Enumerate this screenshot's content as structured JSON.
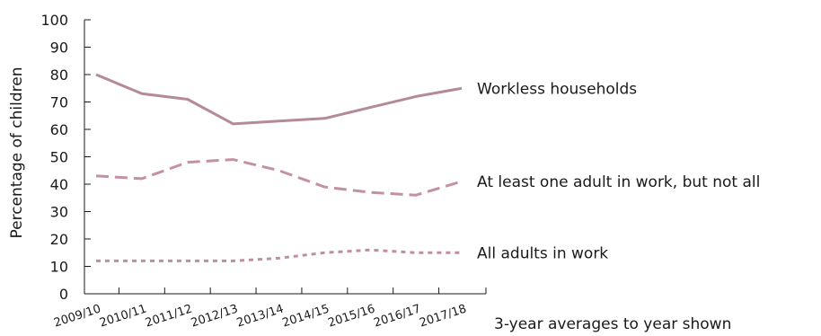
{
  "chart_data": {
    "type": "line",
    "categories": [
      "2009/10",
      "2010/11",
      "2011/12",
      "2012/13",
      "2013/14",
      "2014/15",
      "2015/16",
      "2016/17",
      "2017/18"
    ],
    "ylabel": "Percentage of children",
    "xlabel": "3-year averages to year shown",
    "ylim": [
      0,
      100
    ],
    "yticks": [
      0,
      10,
      20,
      30,
      40,
      50,
      60,
      70,
      80,
      90,
      100
    ],
    "grid": false,
    "series": [
      {
        "name": "Workless households",
        "style": "solid",
        "color": "#b58a98",
        "values": [
          80,
          73,
          71,
          62,
          63,
          64,
          68,
          72,
          75
        ]
      },
      {
        "name": "At least one adult in work, but not all",
        "style": "dashed",
        "color": "#c4919f",
        "values": [
          43,
          42,
          48,
          49,
          45,
          39,
          37,
          36,
          41
        ]
      },
      {
        "name": "All adults in work",
        "style": "dotted",
        "color": "#c08f9d",
        "values": [
          12,
          12,
          12,
          12,
          13,
          15,
          16,
          15,
          15
        ]
      }
    ]
  }
}
